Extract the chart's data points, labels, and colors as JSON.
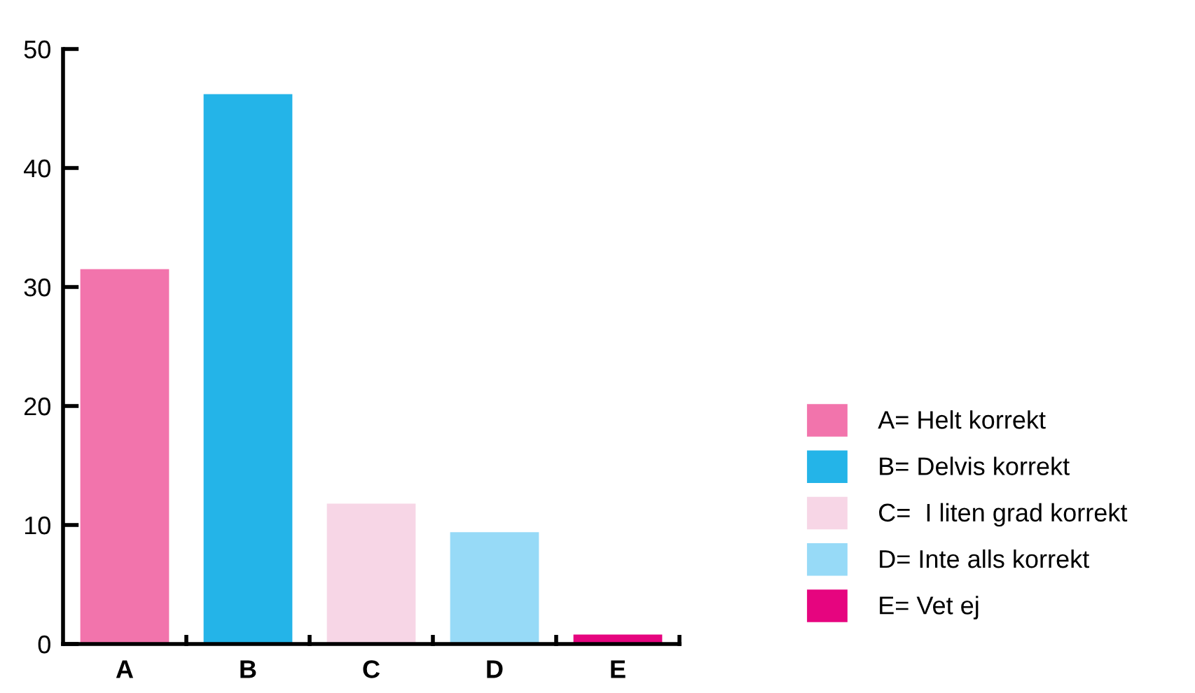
{
  "chart_data": {
    "type": "bar",
    "stacked": true,
    "categories": [
      "A",
      "B",
      "C",
      "D",
      "E"
    ],
    "series": [
      {
        "name": "A= Helt korrekt",
        "color": "#f274ac",
        "values": [
          31.5,
          null,
          null,
          null,
          null
        ]
      },
      {
        "name": "B= Delvis korrekt",
        "color": "#24b4e8",
        "values": [
          null,
          46.2,
          null,
          null,
          null
        ]
      },
      {
        "name": "C=  I liten grad korrekt",
        "color": "#f7d6e6",
        "values": [
          null,
          null,
          11.8,
          null,
          null
        ]
      },
      {
        "name": "D= Inte alls korrekt",
        "color": "#97daf7",
        "values": [
          null,
          null,
          null,
          9.4,
          null
        ]
      },
      {
        "name": "E= Vet ej",
        "color": "#e6057f",
        "values": [
          null,
          null,
          null,
          null,
          0.8
        ]
      }
    ],
    "ylim": [
      0,
      50
    ],
    "yticks": [
      0,
      10,
      20,
      30,
      40,
      50
    ],
    "grid": false,
    "legend": "right"
  }
}
